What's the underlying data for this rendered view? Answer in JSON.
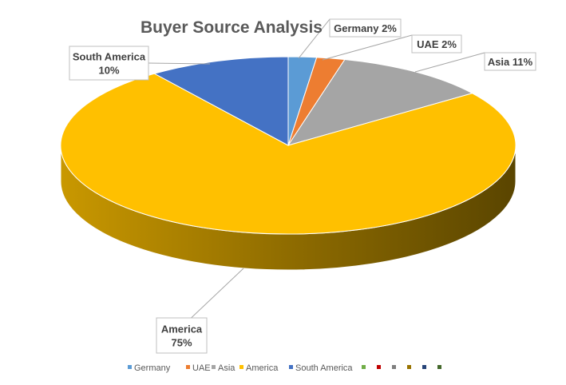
{
  "chart_data": {
    "type": "pie",
    "style": "3d",
    "title": "Buyer Source Analysis",
    "slices": [
      {
        "name": "Germany",
        "value": 2,
        "color": "#5B9BD5"
      },
      {
        "name": "UAE",
        "value": 2,
        "color": "#ED7D31"
      },
      {
        "name": "Asia",
        "value": 11,
        "color": "#A5A5A5"
      },
      {
        "name": "America",
        "value": 75,
        "color": "#FFC000"
      },
      {
        "name": "South America",
        "value": 10,
        "color": "#4472C4"
      }
    ],
    "data_labels": [
      {
        "series": "Germany",
        "lines": [
          "Germany 2%"
        ]
      },
      {
        "series": "UAE",
        "lines": [
          "UAE 2%"
        ]
      },
      {
        "series": "Asia",
        "lines": [
          "Asia 11%"
        ]
      },
      {
        "series": "America",
        "lines": [
          "America",
          "75%"
        ]
      },
      {
        "series": "South America",
        "lines": [
          "South America",
          "10%"
        ]
      }
    ],
    "legend": {
      "position": "bottom",
      "entries": [
        "Germany",
        "UAE",
        "Asia",
        "America",
        "South America"
      ],
      "extra_marker_colors": [
        "#70AD47",
        "#C00000",
        "#7F7F7F",
        "#997300",
        "#264478",
        "#43682B"
      ]
    }
  }
}
